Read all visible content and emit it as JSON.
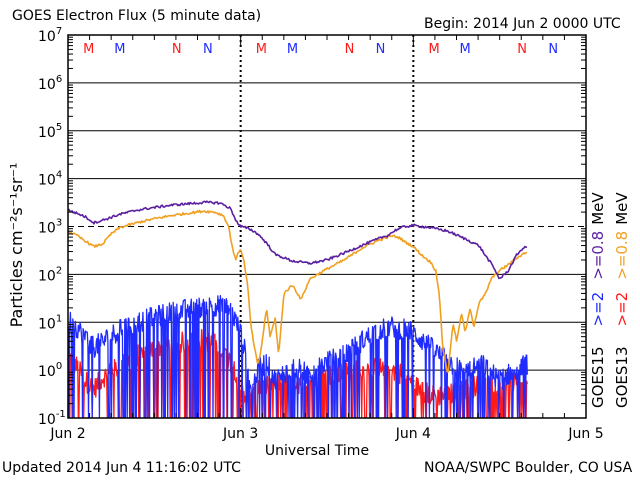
{
  "header": {
    "title": "GOES Electron Flux (5 minute data)",
    "begin": "Begin: 2014 Jun 2 0000 UTC"
  },
  "footer": {
    "updated": "Updated 2014 Jun  4 11:16:02 UTC",
    "source": "NOAA/SWPC Boulder, CO USA"
  },
  "colors": {
    "goes15_e2": "#1f2bff",
    "goes15_e08": "#5a1fa0",
    "goes13_e2": "#ff1a1a",
    "goes13_e08": "#f0a020",
    "marker_M": [
      "#ff1a1a",
      "#1f2bff"
    ],
    "marker_N": [
      "#ff1a1a",
      "#1f2bff"
    ]
  },
  "chart_data": {
    "type": "line",
    "title": "GOES Electron Flux (5 minute data)",
    "xlabel": "Universal Time",
    "ylabel": "Particles cm⁻²s⁻¹sr⁻¹",
    "x_unit": "days since 2014 Jun 2 0000 UTC",
    "xlim": [
      0,
      3
    ],
    "x_ticks": [
      {
        "x": 0,
        "label": "Jun 2"
      },
      {
        "x": 1,
        "label": "Jun 3"
      },
      {
        "x": 2,
        "label": "Jun 4"
      },
      {
        "x": 3,
        "label": "Jun 5"
      }
    ],
    "y_scale": "log",
    "ylim": [
      0.1,
      10000000
    ],
    "y_ticks": [
      {
        "exp": 7,
        "label": "10",
        "sup": "7"
      },
      {
        "exp": 6,
        "label": "10",
        "sup": "6"
      },
      {
        "exp": 5,
        "label": "10",
        "sup": "5"
      },
      {
        "exp": 4,
        "label": "10",
        "sup": "4"
      },
      {
        "exp": 3,
        "label": "10",
        "sup": "3"
      },
      {
        "exp": 2,
        "label": "10",
        "sup": "2"
      },
      {
        "exp": 1,
        "label": "10",
        "sup": "1"
      },
      {
        "exp": 0,
        "label": "10",
        "sup": "0"
      },
      {
        "exp": -1,
        "label": "10",
        "sup": "-1"
      }
    ],
    "threshold_line": {
      "y": 1000,
      "style": "dashed"
    },
    "day_boundaries_dotted": [
      1,
      2
    ],
    "noon_markers": [
      {
        "x": 0.12,
        "label": "M",
        "color": "#ff1a1a"
      },
      {
        "x": 0.3,
        "label": "M",
        "color": "#1f2bff"
      },
      {
        "x": 0.63,
        "label": "N",
        "color": "#ff1a1a"
      },
      {
        "x": 0.81,
        "label": "N",
        "color": "#1f2bff"
      },
      {
        "x": 1.12,
        "label": "M",
        "color": "#ff1a1a"
      },
      {
        "x": 1.3,
        "label": "M",
        "color": "#1f2bff"
      },
      {
        "x": 1.63,
        "label": "N",
        "color": "#ff1a1a"
      },
      {
        "x": 1.81,
        "label": "N",
        "color": "#1f2bff"
      },
      {
        "x": 2.12,
        "label": "M",
        "color": "#ff1a1a"
      },
      {
        "x": 2.3,
        "label": "M",
        "color": "#1f2bff"
      },
      {
        "x": 2.63,
        "label": "N",
        "color": "#ff1a1a"
      },
      {
        "x": 2.81,
        "label": "N",
        "color": "#1f2bff"
      }
    ],
    "legend": {
      "placement": "right",
      "groups": [
        {
          "satellite": "GOES15",
          "items": [
            {
              "text": ">=2",
              "color": "#1f2bff"
            },
            {
              "text": ">=0.8",
              "color": "#5a1fa0"
            }
          ]
        },
        {
          "satellite": "GOES13",
          "items": [
            {
              "text": ">=2",
              "color": "#ff1a1a"
            },
            {
              "text": ">=0.8",
              "color": "#f0a020"
            }
          ]
        }
      ],
      "unit": "MeV"
    },
    "series": [
      {
        "name": "GOES15 >=0.8 MeV",
        "color": "#5a1fa0",
        "style": "smooth",
        "points": [
          [
            0,
            2200
          ],
          [
            0.05,
            1900
          ],
          [
            0.1,
            1600
          ],
          [
            0.15,
            1200
          ],
          [
            0.2,
            1350
          ],
          [
            0.3,
            1800
          ],
          [
            0.4,
            2200
          ],
          [
            0.5,
            2500
          ],
          [
            0.6,
            2800
          ],
          [
            0.7,
            3000
          ],
          [
            0.8,
            3200
          ],
          [
            0.88,
            3100
          ],
          [
            0.94,
            2400
          ],
          [
            0.98,
            1200
          ],
          [
            1.0,
            1000
          ],
          [
            1.05,
            900
          ],
          [
            1.1,
            700
          ],
          [
            1.15,
            450
          ],
          [
            1.2,
            260
          ],
          [
            1.3,
            190
          ],
          [
            1.4,
            170
          ],
          [
            1.5,
            200
          ],
          [
            1.6,
            280
          ],
          [
            1.7,
            400
          ],
          [
            1.8,
            560
          ],
          [
            1.85,
            650
          ],
          [
            1.9,
            850
          ],
          [
            1.95,
            1000
          ],
          [
            2.0,
            1050
          ],
          [
            2.1,
            950
          ],
          [
            2.2,
            800
          ],
          [
            2.3,
            550
          ],
          [
            2.38,
            400
          ],
          [
            2.42,
            240
          ],
          [
            2.45,
            170
          ],
          [
            2.48,
            110
          ],
          [
            2.5,
            80
          ],
          [
            2.55,
            120
          ],
          [
            2.6,
            260
          ],
          [
            2.63,
            340
          ],
          [
            2.66,
            380
          ]
        ]
      },
      {
        "name": "GOES13 >=0.8 MeV",
        "color": "#f0a020",
        "style": "smooth",
        "points": [
          [
            0,
            800
          ],
          [
            0.05,
            650
          ],
          [
            0.1,
            500
          ],
          [
            0.15,
            380
          ],
          [
            0.2,
            430
          ],
          [
            0.25,
            700
          ],
          [
            0.3,
            950
          ],
          [
            0.4,
            1200
          ],
          [
            0.5,
            1450
          ],
          [
            0.6,
            1700
          ],
          [
            0.7,
            1900
          ],
          [
            0.78,
            2100
          ],
          [
            0.85,
            2000
          ],
          [
            0.9,
            1700
          ],
          [
            0.93,
            1000
          ],
          [
            0.95,
            400
          ],
          [
            0.97,
            200
          ],
          [
            0.99,
            300
          ],
          [
            1.0,
            350
          ],
          [
            1.02,
            180
          ],
          [
            1.04,
            60
          ],
          [
            1.06,
            8
          ],
          [
            1.08,
            3
          ],
          [
            1.1,
            1.2
          ],
          [
            1.12,
            3
          ],
          [
            1.15,
            20
          ],
          [
            1.17,
            5
          ],
          [
            1.2,
            12
          ],
          [
            1.22,
            2
          ],
          [
            1.25,
            40
          ],
          [
            1.3,
            60
          ],
          [
            1.35,
            30
          ],
          [
            1.4,
            80
          ],
          [
            1.5,
            130
          ],
          [
            1.6,
            200
          ],
          [
            1.7,
            350
          ],
          [
            1.8,
            520
          ],
          [
            1.88,
            640
          ],
          [
            1.92,
            580
          ],
          [
            1.95,
            480
          ],
          [
            2.0,
            380
          ],
          [
            2.05,
            250
          ],
          [
            2.1,
            180
          ],
          [
            2.13,
            120
          ],
          [
            2.15,
            40
          ],
          [
            2.17,
            3
          ],
          [
            2.2,
            0.8
          ],
          [
            2.23,
            10
          ],
          [
            2.25,
            4
          ],
          [
            2.28,
            15
          ],
          [
            2.3,
            6
          ],
          [
            2.33,
            20
          ],
          [
            2.35,
            8
          ],
          [
            2.38,
            25
          ],
          [
            2.42,
            40
          ],
          [
            2.45,
            80
          ],
          [
            2.5,
            120
          ],
          [
            2.55,
            160
          ],
          [
            2.6,
            220
          ],
          [
            2.63,
            260
          ],
          [
            2.66,
            300
          ]
        ]
      },
      {
        "name": "GOES15 >=2 MeV",
        "color": "#1f2bff",
        "style": "noisy",
        "points": [
          [
            0,
            12
          ],
          [
            0.05,
            8
          ],
          [
            0.1,
            5
          ],
          [
            0.15,
            3
          ],
          [
            0.2,
            4
          ],
          [
            0.3,
            7
          ],
          [
            0.4,
            10
          ],
          [
            0.5,
            13
          ],
          [
            0.6,
            16
          ],
          [
            0.7,
            19
          ],
          [
            0.8,
            21
          ],
          [
            0.88,
            23
          ],
          [
            0.94,
            18
          ],
          [
            0.98,
            9
          ],
          [
            1.0,
            6
          ],
          [
            1.03,
            2
          ],
          [
            1.06,
            0.4
          ],
          [
            1.1,
            1
          ],
          [
            1.15,
            1.5
          ],
          [
            1.2,
            0.6
          ],
          [
            1.3,
            1.2
          ],
          [
            1.4,
            0.8
          ],
          [
            1.5,
            1.5
          ],
          [
            1.6,
            2
          ],
          [
            1.7,
            4
          ],
          [
            1.8,
            7
          ],
          [
            1.88,
            8
          ],
          [
            1.95,
            7
          ],
          [
            2.0,
            6
          ],
          [
            2.1,
            3
          ],
          [
            2.2,
            1.5
          ],
          [
            2.3,
            0.9
          ],
          [
            2.4,
            1.3
          ],
          [
            2.5,
            0.6
          ],
          [
            2.6,
            1.1
          ],
          [
            2.66,
            1.3
          ]
        ]
      },
      {
        "name": "GOES13 >=2 MeV",
        "color": "#ff1a1a",
        "style": "noisy",
        "points": [
          [
            0,
            2
          ],
          [
            0.05,
            1.2
          ],
          [
            0.1,
            0.6
          ],
          [
            0.15,
            0.4
          ],
          [
            0.2,
            0.7
          ],
          [
            0.3,
            1.2
          ],
          [
            0.4,
            2
          ],
          [
            0.5,
            2.8
          ],
          [
            0.6,
            3.5
          ],
          [
            0.7,
            4
          ],
          [
            0.78,
            4.5
          ],
          [
            0.85,
            3.5
          ],
          [
            0.92,
            2
          ],
          [
            0.97,
            1
          ],
          [
            1.0,
            0.4
          ],
          [
            1.05,
            0.3
          ],
          [
            1.1,
            0.4
          ],
          [
            1.2,
            0.5
          ],
          [
            1.3,
            0.5
          ],
          [
            1.4,
            0.6
          ],
          [
            1.5,
            0.8
          ],
          [
            1.6,
            0.9
          ],
          [
            1.7,
            1
          ],
          [
            1.8,
            1.1
          ],
          [
            1.88,
            1
          ],
          [
            1.95,
            0.8
          ],
          [
            2.0,
            0.5
          ],
          [
            2.1,
            0.3
          ],
          [
            2.2,
            0.3
          ],
          [
            2.3,
            0.4
          ],
          [
            2.4,
            0.5
          ],
          [
            2.5,
            0.5
          ],
          [
            2.6,
            0.6
          ],
          [
            2.66,
            0.6
          ]
        ]
      }
    ]
  }
}
